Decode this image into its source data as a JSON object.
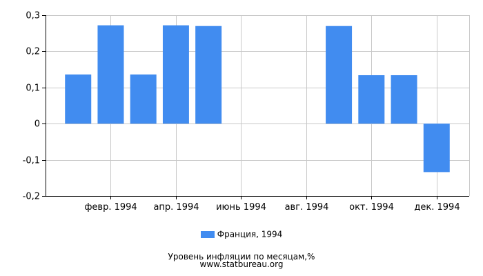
{
  "chart_data": {
    "type": "bar",
    "categories": [
      "1994-01",
      "1994-02",
      "1994-03",
      "1994-04",
      "1994-05",
      "1994-06",
      "1994-07",
      "1994-08",
      "1994-09",
      "1994-10",
      "1994-11",
      "1994-12"
    ],
    "series": [
      {
        "name": "Франция, 1994",
        "values": [
          0.136,
          0.272,
          0.136,
          0.272,
          0.27,
          0,
          0,
          0,
          0.27,
          0.134,
          0.134,
          -0.134
        ]
      }
    ],
    "ylim": [
      -0.2,
      0.3
    ],
    "yticks": [
      {
        "value": -0.2,
        "label": "-0,2"
      },
      {
        "value": -0.1,
        "label": "-0,1"
      },
      {
        "value": 0,
        "label": "0"
      },
      {
        "value": 0.1,
        "label": "0,1"
      },
      {
        "value": 0.2,
        "label": "0,2"
      },
      {
        "value": 0.3,
        "label": "0,3"
      }
    ],
    "xticks": [
      {
        "index": 1,
        "label": "февр. 1994"
      },
      {
        "index": 3,
        "label": "апр. 1994"
      },
      {
        "index": 5,
        "label": "июнь 1994"
      },
      {
        "index": 7,
        "label": "авг. 1994"
      },
      {
        "index": 9,
        "label": "окт. 1994"
      },
      {
        "index": 11,
        "label": "дек. 1994"
      }
    ],
    "grid": true,
    "legend_position": "bottom",
    "bar_color": "#418cf0",
    "grid_color": "#c8c8c8",
    "title": "Уровень инфляции по месяцам,%",
    "source": "www.statbureau.org"
  }
}
